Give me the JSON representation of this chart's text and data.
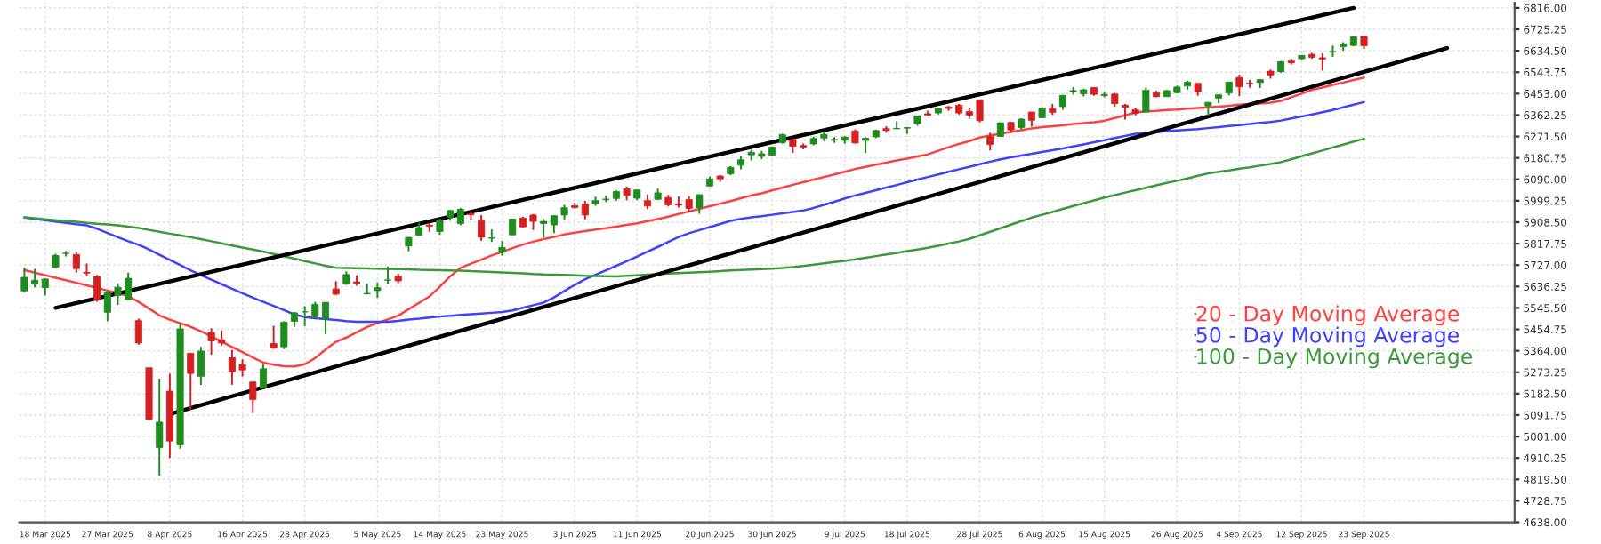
{
  "chart_data": {
    "type": "candlestick",
    "categories": [
      null,
      null,
      "18 Mar 2025",
      null,
      null,
      null,
      null,
      null,
      "27 Mar 2025",
      null,
      null,
      null,
      null,
      null,
      "8 Apr 2025",
      null,
      null,
      null,
      null,
      null,
      null,
      "16 Apr 2025",
      null,
      null,
      null,
      null,
      null,
      "28 Apr 2025",
      null,
      null,
      null,
      null,
      null,
      null,
      "5 May 2025",
      null,
      null,
      null,
      null,
      null,
      "14 May 2025",
      null,
      null,
      null,
      null,
      null,
      "23 May 2025",
      null,
      null,
      null,
      null,
      null,
      null,
      "3 Jun 2025",
      null,
      null,
      null,
      null,
      null,
      "11 Jun 2025",
      null,
      null,
      null,
      null,
      null,
      null,
      "20 Jun 2025",
      null,
      null,
      null,
      null,
      null,
      "30 Jun 2025",
      null,
      null,
      null,
      null,
      null,
      null,
      "9 Jul 2025",
      null,
      null,
      null,
      null,
      null,
      "18 Jul 2025",
      null,
      null,
      null,
      null,
      null,
      null,
      "28 Jul 2025",
      null,
      null,
      null,
      null,
      null,
      "6 Aug 2025",
      null,
      null,
      null,
      null,
      null,
      "15 Aug 2025",
      null,
      null,
      null,
      null,
      null,
      null,
      "26 Aug 2025",
      null,
      null,
      null,
      null,
      null,
      "4 Sep 2025",
      null,
      null,
      null,
      null,
      null,
      "12 Sep 2025",
      null,
      null,
      null,
      null,
      null,
      "23 Sep 2025",
      null,
      null,
      null,
      null,
      null,
      null,
      null,
      null,
      null,
      null,
      null,
      null,
      null,
      null
    ],
    "ohlc": [
      [
        5618,
        5716,
        5611,
        5675
      ],
      [
        5646,
        5711,
        5633,
        5663
      ],
      [
        5631,
        5670,
        5598,
        5668
      ],
      [
        5718,
        5775,
        5718,
        5768
      ],
      [
        5776,
        5786,
        5764,
        5777
      ],
      [
        5772,
        5784,
        5695,
        5712
      ],
      [
        5696,
        5733,
        5681,
        5693
      ],
      [
        5679,
        5685,
        5572,
        5581
      ],
      [
        5527,
        5616,
        5489,
        5612
      ],
      [
        5597,
        5650,
        5558,
        5633
      ],
      [
        5581,
        5695,
        5578,
        5671
      ],
      [
        5492,
        5500,
        5390,
        5397
      ],
      [
        5292,
        5292,
        5070,
        5074
      ],
      [
        4954,
        5246,
        4835,
        5062
      ],
      [
        5193,
        5267,
        4910,
        4982
      ],
      [
        4966,
        5481,
        4950,
        5457
      ],
      [
        5353,
        5353,
        5115,
        5268
      ],
      [
        5256,
        5381,
        5220,
        5363
      ],
      [
        5442,
        5460,
        5348,
        5406
      ],
      [
        5411,
        5450,
        5386,
        5397
      ],
      [
        5335,
        5368,
        5220,
        5276
      ],
      [
        5305,
        5328,
        5255,
        5283
      ],
      [
        5232,
        5232,
        5101,
        5158
      ],
      [
        5207,
        5309,
        5207,
        5288
      ],
      [
        5395,
        5470,
        5372,
        5376
      ],
      [
        5381,
        5489,
        5371,
        5485
      ],
      [
        5489,
        5528,
        5465,
        5525
      ],
      [
        5529,
        5553,
        5468,
        5529
      ],
      [
        5508,
        5571,
        5505,
        5561
      ],
      [
        5500,
        5571,
        5434,
        5569
      ],
      [
        5626,
        5659,
        5599,
        5604
      ],
      [
        5646,
        5700,
        5644,
        5687
      ],
      [
        5656,
        5684,
        5640,
        5650
      ],
      [
        5605,
        5649,
        5603,
        5607
      ],
      [
        5619,
        5654,
        5588,
        5631
      ],
      [
        5663,
        5721,
        5648,
        5664
      ],
      [
        5679,
        5691,
        5650,
        5660
      ],
      [
        5808,
        5846,
        5786,
        5844
      ],
      [
        5854,
        5906,
        5854,
        5886
      ],
      [
        5896,
        5906,
        5868,
        5892
      ],
      [
        5869,
        5924,
        5855,
        5917
      ],
      [
        5929,
        5959,
        5915,
        5958
      ],
      [
        5903,
        5969,
        5895,
        5963
      ],
      [
        5945,
        5954,
        5920,
        5940
      ],
      [
        5915,
        5939,
        5830,
        5845
      ],
      [
        5841,
        5878,
        5825,
        5842
      ],
      [
        5781,
        5829,
        5767,
        5802
      ],
      [
        5855,
        5924,
        5855,
        5922
      ],
      [
        5926,
        5931,
        5887,
        5889
      ],
      [
        5939,
        5943,
        5875,
        5912
      ],
      [
        5903,
        5922,
        5843,
        5912
      ],
      [
        5897,
        5937,
        5862,
        5936
      ],
      [
        5939,
        5982,
        5919,
        5970
      ],
      [
        5978,
        5990,
        5966,
        5971
      ],
      [
        5985,
        5999,
        5921,
        5939
      ],
      [
        5987,
        6017,
        5978,
        6000
      ],
      [
        6005,
        6021,
        5994,
        6006
      ],
      [
        6009,
        6043,
        6000,
        6038
      ],
      [
        6050,
        6059,
        6002,
        6022
      ],
      [
        6010,
        6046,
        6003,
        6045
      ],
      [
        6000,
        6026,
        5964,
        5977
      ],
      [
        6005,
        6051,
        6004,
        6033
      ],
      [
        6013,
        6024,
        5975,
        5982
      ],
      [
        5985,
        6018,
        5971,
        5981
      ],
      [
        6004,
        6018,
        5952,
        5967
      ],
      [
        5970,
        6026,
        5944,
        6025
      ],
      [
        6062,
        6101,
        6059,
        6092
      ],
      [
        6104,
        6108,
        6080,
        6092
      ],
      [
        6114,
        6146,
        6107,
        6141
      ],
      [
        6150,
        6188,
        6132,
        6173
      ],
      [
        6194,
        6215,
        6170,
        6205
      ],
      [
        6187,
        6211,
        6176,
        6198
      ],
      [
        6193,
        6227,
        6190,
        6227
      ],
      [
        6246,
        6284,
        6241,
        6279
      ],
      [
        6259,
        6263,
        6202,
        6230
      ],
      [
        6233,
        6242,
        6217,
        6226
      ],
      [
        6240,
        6271,
        6234,
        6263
      ],
      [
        6265,
        6290,
        6252,
        6280
      ],
      [
        6256,
        6269,
        6244,
        6259
      ],
      [
        6255,
        6273,
        6241,
        6269
      ],
      [
        6295,
        6302,
        6242,
        6244
      ],
      [
        6255,
        6268,
        6201,
        6264
      ],
      [
        6270,
        6300,
        6265,
        6297
      ],
      [
        6305,
        6315,
        6287,
        6297
      ],
      [
        6304,
        6336,
        6304,
        6306
      ],
      [
        6307,
        6310,
        6282,
        6309
      ],
      [
        6326,
        6360,
        6317,
        6359
      ],
      [
        6368,
        6381,
        6360,
        6363
      ],
      [
        6371,
        6390,
        6365,
        6389
      ],
      [
        6397,
        6401,
        6380,
        6390
      ],
      [
        6404,
        6409,
        6365,
        6371
      ],
      [
        6377,
        6390,
        6346,
        6362
      ],
      [
        6427,
        6428,
        6331,
        6339
      ],
      [
        6271,
        6288,
        6212,
        6238
      ],
      [
        6272,
        6330,
        6271,
        6330
      ],
      [
        6331,
        6334,
        6286,
        6299
      ],
      [
        6309,
        6349,
        6301,
        6345
      ],
      [
        6375,
        6375,
        6313,
        6340
      ],
      [
        6351,
        6396,
        6350,
        6389
      ],
      [
        6389,
        6409,
        6364,
        6374
      ],
      [
        6398,
        6446,
        6385,
        6446
      ],
      [
        6462,
        6481,
        6450,
        6466
      ],
      [
        6452,
        6474,
        6441,
        6469
      ],
      [
        6479,
        6481,
        6444,
        6450
      ],
      [
        6445,
        6459,
        6437,
        6449
      ],
      [
        6451,
        6456,
        6397,
        6411
      ],
      [
        6404,
        6409,
        6343,
        6396
      ],
      [
        6385,
        6394,
        6361,
        6370
      ],
      [
        6375,
        6479,
        6374,
        6467
      ],
      [
        6457,
        6466,
        6438,
        6440
      ],
      [
        6440,
        6468,
        6440,
        6466
      ],
      [
        6457,
        6486,
        6454,
        6481
      ],
      [
        6485,
        6508,
        6470,
        6502
      ],
      [
        6497,
        6497,
        6444,
        6460
      ],
      [
        6401,
        6416,
        6360,
        6416
      ],
      [
        6434,
        6449,
        6413,
        6448
      ],
      [
        6456,
        6502,
        6446,
        6502
      ],
      [
        6521,
        6533,
        6443,
        6482
      ],
      [
        6497,
        6511,
        6478,
        6495
      ],
      [
        6500,
        6513,
        6477,
        6512
      ],
      [
        6548,
        6555,
        6516,
        6532
      ],
      [
        6546,
        6592,
        6542,
        6588
      ],
      [
        6591,
        6600,
        6577,
        6584
      ],
      [
        6601,
        6616,
        6596,
        6615
      ],
      [
        6619,
        6626,
        6601,
        6607
      ],
      [
        6605,
        6624,
        6551,
        6600
      ],
      [
        6630,
        6657,
        6609,
        6631
      ],
      [
        6652,
        6671,
        6635,
        6664
      ],
      [
        6657,
        6695,
        6655,
        6693
      ],
      [
        6696,
        6699,
        6642,
        6656
      ],
      null,
      null,
      null,
      null,
      null,
      null,
      null,
      null,
      null,
      null,
      null,
      null,
      null,
      null
    ],
    "colors": [
      "#1e8c1e",
      "#1e8c1e",
      "#1e8c1e",
      "#1e8c1e",
      "#1e8c1e",
      "#d42020",
      "#d42020",
      "#d42020",
      "#1e8c1e",
      "#1e8c1e",
      "#1e8c1e",
      "#d42020",
      "#d42020",
      "#1e8c1e",
      "#d42020",
      "#1e8c1e",
      "#d42020",
      "#1e8c1e",
      "#d42020",
      "#d42020",
      "#d42020",
      "#d42020",
      "#d42020",
      "#1e8c1e",
      "#d42020",
      "#1e8c1e",
      "#1e8c1e",
      "#1e8c1e",
      "#1e8c1e",
      "#1e8c1e",
      "#d42020",
      "#1e8c1e",
      "#d42020",
      "#1e8c1e",
      "#1e8c1e",
      "#1e8c1e",
      "#d42020",
      "#1e8c1e",
      "#1e8c1e",
      "#d42020",
      "#1e8c1e",
      "#1e8c1e",
      "#1e8c1e",
      "#d42020",
      "#d42020",
      "#1e8c1e",
      "#1e8c1e",
      "#1e8c1e",
      "#d42020",
      "#d42020",
      "#1e8c1e",
      "#1e8c1e",
      "#1e8c1e",
      "#d42020",
      "#d42020",
      "#1e8c1e",
      "#1e8c1e",
      "#1e8c1e",
      "#d42020",
      "#1e8c1e",
      "#d42020",
      "#1e8c1e",
      "#d42020",
      "#d42020",
      "#d42020",
      "#1e8c1e",
      "#1e8c1e",
      "#d42020",
      "#1e8c1e",
      "#1e8c1e",
      "#1e8c1e",
      "#1e8c1e",
      "#1e8c1e",
      "#1e8c1e",
      "#d42020",
      "#d42020",
      "#1e8c1e",
      "#1e8c1e",
      "#1e8c1e",
      "#1e8c1e",
      "#d42020",
      "#1e8c1e",
      "#1e8c1e",
      "#d42020",
      "#1e8c1e",
      "#1e8c1e",
      "#1e8c1e",
      "#d42020",
      "#1e8c1e",
      "#d42020",
      "#d42020",
      "#d42020",
      "#d42020",
      "#d42020",
      "#1e8c1e",
      "#d42020",
      "#1e8c1e",
      "#d42020",
      "#1e8c1e",
      "#d42020",
      "#1e8c1e",
      "#1e8c1e",
      "#1e8c1e",
      "#d42020",
      "#1e8c1e",
      "#d42020",
      "#d42020",
      "#d42020",
      "#1e8c1e",
      "#d42020",
      "#1e8c1e",
      "#1e8c1e",
      "#1e8c1e",
      "#d42020",
      "#1e8c1e",
      "#1e8c1e",
      "#1e8c1e",
      "#d42020",
      "#d42020",
      "#1e8c1e",
      "#d42020",
      "#1e8c1e",
      "#d42020",
      "#1e8c1e",
      "#d42020",
      "#d42020",
      "#1e8c1e",
      "#1e8c1e",
      "#1e8c1e",
      "#d42020",
      null,
      null,
      null,
      null,
      null,
      null,
      null,
      null,
      null,
      null,
      null,
      null,
      null,
      null
    ],
    "series": [
      {
        "type": "line",
        "name": "20 - Day Moving Average",
        "color": "#ff4040",
        "values": [
          5706,
          5695,
          5684,
          5673,
          5663,
          5652,
          5641,
          5630,
          5619,
          5609,
          5595,
          5571,
          5543,
          5514,
          5496,
          5481,
          5466,
          5447,
          5425,
          5403,
          5380,
          5358,
          5336,
          5314,
          5305,
          5299,
          5298,
          5307,
          5333,
          5369,
          5402,
          5420,
          5442,
          5465,
          5482,
          5497,
          5513,
          5540,
          5567,
          5594,
          5635,
          5679,
          5715,
          5733,
          5750,
          5768,
          5783,
          5799,
          5814,
          5826,
          5837,
          5846,
          5857,
          5864,
          5871,
          5877,
          5883,
          5890,
          5897,
          5904,
          5913,
          5922,
          5932,
          5943,
          5954,
          5965,
          5976,
          5987,
          5998,
          6010,
          6022,
          6031,
          6043,
          6055,
          6067,
          6078,
          6089,
          6100,
          6111,
          6122,
          6134,
          6143,
          6152,
          6161,
          6170,
          6178,
          6187,
          6196,
          6211,
          6226,
          6240,
          6252,
          6267,
          6276,
          6283,
          6291,
          6298,
          6306,
          6311,
          6315,
          6319,
          6324,
          6328,
          6332,
          6338,
          6350,
          6361,
          6373,
          6378,
          6380,
          6384,
          6386,
          6389,
          6392,
          6395,
          6398,
          6402,
          6406,
          6409,
          6411,
          6415,
          6422,
          6438,
          6453,
          6469,
          6479,
          6490,
          6500,
          6511,
          6521,
          null,
          null,
          null,
          null,
          null,
          null,
          null,
          null,
          null,
          null,
          null,
          null,
          null,
          null
        ]
      },
      {
        "type": "line",
        "name": "50 - Day Moving Average",
        "color": "#4040ff",
        "values": [
          5928,
          5923,
          5917,
          5911,
          5906,
          5900,
          5895,
          5881,
          5863,
          5845,
          5828,
          5813,
          5793,
          5771,
          5749,
          5727,
          5705,
          5684,
          5665,
          5646,
          5627,
          5608,
          5589,
          5571,
          5554,
          5536,
          5518,
          5507,
          5502,
          5498,
          5494,
          5490,
          5487,
          5487,
          5487,
          5487,
          5491,
          5496,
          5500,
          5505,
          5509,
          5512,
          5516,
          5519,
          5522,
          5525,
          5528,
          5535,
          5546,
          5557,
          5568,
          5590,
          5617,
          5643,
          5667,
          5686,
          5705,
          5724,
          5743,
          5763,
          5784,
          5804,
          5825,
          5846,
          5862,
          5875,
          5888,
          5901,
          5914,
          5923,
          5929,
          5934,
          5940,
          5946,
          5952,
          5958,
          5969,
          5982,
          5995,
          6009,
          6022,
          6033,
          6044,
          6055,
          6066,
          6078,
          6089,
          6100,
          6111,
          6122,
          6133,
          6143,
          6154,
          6165,
          6175,
          6183,
          6191,
          6198,
          6206,
          6213,
          6221,
          6229,
          6238,
          6247,
          6256,
          6265,
          6274,
          6283,
          6287,
          6290,
          6294,
          6297,
          6300,
          6303,
          6307,
          6311,
          6316,
          6320,
          6324,
          6329,
          6333,
          6339,
          6348,
          6356,
          6365,
          6374,
          6384,
          6395,
          6406,
          6417,
          null,
          null,
          null,
          null,
          null,
          null,
          null,
          null,
          null,
          null,
          null,
          null,
          null,
          null
        ]
      },
      {
        "type": "line",
        "name": "100 - Day Moving Average",
        "color": "#3a9a3a",
        "values": [
          5929,
          5925,
          5921,
          5917,
          5914,
          5910,
          5906,
          5902,
          5899,
          5895,
          5890,
          5884,
          5876,
          5868,
          5860,
          5853,
          5845,
          5837,
          5828,
          5819,
          5810,
          5801,
          5793,
          5784,
          5774,
          5764,
          5754,
          5744,
          5734,
          5724,
          5716,
          5715,
          5714,
          5713,
          5712,
          5711,
          5710,
          5709,
          5707,
          5706,
          5705,
          5704,
          5703,
          5701,
          5700,
          5698,
          5696,
          5694,
          5692,
          5689,
          5687,
          5686,
          5685,
          5684,
          5682,
          5681,
          5680,
          5679,
          5682,
          5684,
          5686,
          5688,
          5691,
          5693,
          5695,
          5697,
          5699,
          5701,
          5704,
          5706,
          5708,
          5710,
          5712,
          5715,
          5718,
          5723,
          5729,
          5734,
          5740,
          5745,
          5751,
          5758,
          5765,
          5772,
          5779,
          5786,
          5793,
          5800,
          5809,
          5818,
          5827,
          5838,
          5853,
          5868,
          5883,
          5898,
          5913,
          5928,
          5940,
          5952,
          5965,
          5977,
          5989,
          6001,
          6013,
          6023,
          6034,
          6044,
          6054,
          6065,
          6075,
          6084,
          6094,
          6105,
          6115,
          6122,
          6128,
          6135,
          6141,
          6148,
          6155,
          6163,
          6175,
          6188,
          6200,
          6212,
          6225,
          6237,
          6250,
          6262,
          null,
          null,
          null,
          null,
          null,
          null,
          null,
          null,
          null,
          null,
          null,
          null,
          null,
          null
        ]
      },
      {
        "type": "line",
        "color": "#000000",
        "values": [
          null,
          null,
          null,
          5546,
          null,
          null,
          null,
          null,
          null,
          null,
          null,
          null,
          null,
          null,
          null,
          null,
          null,
          null,
          null,
          null,
          null,
          null,
          null,
          null,
          null,
          null,
          null,
          null,
          null,
          null,
          null,
          null,
          null,
          null,
          null,
          null,
          null,
          null,
          null,
          null,
          null,
          null,
          null,
          null,
          null,
          null,
          null,
          null,
          null,
          null,
          null,
          null,
          null,
          null,
          null,
          null,
          null,
          null,
          null,
          null,
          null,
          null,
          null,
          null,
          null,
          null,
          null,
          null,
          null,
          null,
          null,
          null,
          null,
          null,
          null,
          null,
          null,
          null,
          null,
          null,
          null,
          null,
          null,
          null,
          null,
          null,
          null,
          null,
          null,
          null,
          null,
          null,
          null,
          null,
          null,
          null,
          null,
          null,
          null,
          null,
          null,
          null,
          null,
          null,
          null,
          null,
          null,
          null,
          null,
          null,
          null,
          null,
          null,
          null,
          null,
          null,
          null,
          null,
          null,
          null,
          null,
          null,
          null,
          null,
          null,
          null,
          null,
          null,
          6816,
          null,
          null,
          null,
          null,
          null,
          null,
          null,
          null,
          null,
          null,
          null,
          null,
          null,
          null,
          null
        ]
      },
      {
        "type": "line",
        "color": "#000000",
        "values": [
          null,
          null,
          null,
          null,
          null,
          null,
          null,
          null,
          null,
          null,
          null,
          null,
          null,
          null,
          5096,
          null,
          null,
          null,
          null,
          null,
          null,
          null,
          null,
          null,
          null,
          null,
          null,
          null,
          null,
          null,
          null,
          null,
          null,
          null,
          null,
          null,
          null,
          null,
          null,
          null,
          null,
          null,
          null,
          null,
          null,
          null,
          null,
          null,
          null,
          null,
          null,
          null,
          null,
          null,
          null,
          null,
          null,
          null,
          null,
          null,
          null,
          null,
          null,
          null,
          null,
          null,
          null,
          null,
          null,
          null,
          null,
          null,
          null,
          null,
          null,
          null,
          null,
          null,
          null,
          null,
          null,
          null,
          null,
          null,
          null,
          null,
          null,
          null,
          null,
          null,
          null,
          null,
          null,
          null,
          null,
          null,
          null,
          null,
          null,
          null,
          null,
          null,
          null,
          null,
          null,
          null,
          null,
          null,
          null,
          null,
          null,
          null,
          null,
          null,
          null,
          null,
          null,
          null,
          null,
          null,
          null,
          null,
          null,
          null,
          null,
          null,
          null,
          null,
          null,
          null,
          null,
          null,
          null,
          null,
          null,
          null,
          null,
          6646,
          null,
          null,
          null,
          null,
          null,
          null
        ]
      }
    ],
    "ylim": [
      4638,
      6838
    ],
    "yticks": [
      {
        "value": 4638,
        "label": "4638.00"
      },
      {
        "value": 4728.75,
        "label": "4728.75"
      },
      {
        "value": 4819.5,
        "label": "4819.50"
      },
      {
        "value": 4910.25,
        "label": "4910.25"
      },
      {
        "value": 5001,
        "label": "5001.00"
      },
      {
        "value": 5091.75,
        "label": "5091.75"
      },
      {
        "value": 5182.5,
        "label": "5182.50"
      },
      {
        "value": 5273.25,
        "label": "5273.25"
      },
      {
        "value": 5364,
        "label": "5364.00"
      },
      {
        "value": 5454.75,
        "label": "5454.75"
      },
      {
        "value": 5545.5,
        "label": "5545.50"
      },
      {
        "value": 5636.25,
        "label": "5636.25"
      },
      {
        "value": 5727,
        "label": "5727.00"
      },
      {
        "value": 5817.75,
        "label": "5817.75"
      },
      {
        "value": 5908.5,
        "label": "5908.50"
      },
      {
        "value": 5999.25,
        "label": "5999.25"
      },
      {
        "value": 6090,
        "label": "6090.00"
      },
      {
        "value": 6180.75,
        "label": "6180.75"
      },
      {
        "value": 6271.5,
        "label": "6271.50"
      },
      {
        "value": 6362.25,
        "label": "6362.25"
      },
      {
        "value": 6453,
        "label": "6453.00"
      },
      {
        "value": 6543.75,
        "label": "6543.75"
      },
      {
        "value": 6634.5,
        "label": "6634.50"
      },
      {
        "value": 6725.25,
        "label": "6725.25"
      },
      {
        "value": 6816,
        "label": "6816.00"
      }
    ],
    "grid": true,
    "legend": "bottom right"
  }
}
